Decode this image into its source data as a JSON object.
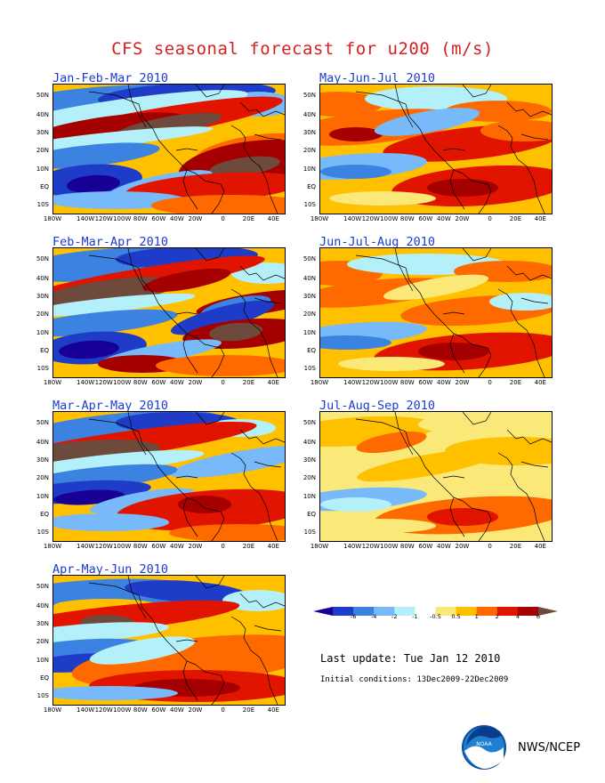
{
  "title": "CFS seasonal forecast for u200 (m/s)",
  "chart_data": [
    {
      "type": "heatmap",
      "title": "Jan-Feb-Mar 2010",
      "variable": "u200 anomaly (m/s)",
      "xticks": [
        "180W",
        "140W",
        "120W",
        "100W",
        "80W",
        "60W",
        "40W",
        "20W",
        "0",
        "20E",
        "40E"
      ],
      "yticks": [
        "50N",
        "40N",
        "30N",
        "20N",
        "10N",
        "EQ",
        "10S"
      ],
      "xlim": [
        -180,
        50
      ],
      "ylim": [
        -15,
        58
      ]
    },
    {
      "type": "heatmap",
      "title": "Feb-Mar-Apr 2010",
      "variable": "u200 anomaly (m/s)",
      "xticks": [
        "180W",
        "140W",
        "120W",
        "100W",
        "80W",
        "60W",
        "40W",
        "20W",
        "0",
        "20E",
        "40E"
      ],
      "yticks": [
        "50N",
        "40N",
        "30N",
        "20N",
        "10N",
        "EQ",
        "10S"
      ],
      "xlim": [
        -180,
        50
      ],
      "ylim": [
        -15,
        58
      ]
    },
    {
      "type": "heatmap",
      "title": "Mar-Apr-May 2010",
      "variable": "u200 anomaly (m/s)",
      "xticks": [
        "180W",
        "140W",
        "120W",
        "100W",
        "80W",
        "60W",
        "40W",
        "20W",
        "0",
        "20E",
        "40E"
      ],
      "yticks": [
        "50N",
        "40N",
        "30N",
        "20N",
        "10N",
        "EQ",
        "10S"
      ],
      "xlim": [
        -180,
        50
      ],
      "ylim": [
        -15,
        58
      ]
    },
    {
      "type": "heatmap",
      "title": "Apr-May-Jun 2010",
      "variable": "u200 anomaly (m/s)",
      "xticks": [
        "180W",
        "140W",
        "120W",
        "100W",
        "80W",
        "60W",
        "40W",
        "20W",
        "0",
        "20E",
        "40E"
      ],
      "yticks": [
        "50N",
        "40N",
        "30N",
        "20N",
        "10N",
        "EQ",
        "10S"
      ],
      "xlim": [
        -180,
        50
      ],
      "ylim": [
        -15,
        58
      ]
    },
    {
      "type": "heatmap",
      "title": "May-Jun-Jul 2010",
      "variable": "u200 anomaly (m/s)",
      "xticks": [
        "180W",
        "140W",
        "120W",
        "100W",
        "80W",
        "60W",
        "40W",
        "20W",
        "0",
        "20E",
        "40E"
      ],
      "yticks": [
        "50N",
        "40N",
        "30N",
        "20N",
        "10N",
        "EQ",
        "10S"
      ],
      "xlim": [
        -180,
        50
      ],
      "ylim": [
        -15,
        58
      ]
    },
    {
      "type": "heatmap",
      "title": "Jun-Jul-Aug 2010",
      "variable": "u200 anomaly (m/s)",
      "xticks": [
        "180W",
        "140W",
        "120W",
        "100W",
        "80W",
        "60W",
        "40W",
        "20W",
        "0",
        "20E",
        "40E"
      ],
      "yticks": [
        "50N",
        "40N",
        "30N",
        "20N",
        "10N",
        "EQ",
        "10S"
      ],
      "xlim": [
        -180,
        50
      ],
      "ylim": [
        -15,
        58
      ]
    },
    {
      "type": "heatmap",
      "title": "Jul-Aug-Sep 2010",
      "variable": "u200 anomaly (m/s)",
      "xticks": [
        "180W",
        "140W",
        "120W",
        "100W",
        "80W",
        "60W",
        "40W",
        "20W",
        "0",
        "20E",
        "40E"
      ],
      "yticks": [
        "50N",
        "40N",
        "30N",
        "20N",
        "10N",
        "EQ",
        "10S"
      ],
      "xlim": [
        -180,
        50
      ],
      "ylim": [
        -15,
        58
      ]
    }
  ],
  "legend": {
    "ticks": [
      "-6",
      "-4",
      "-2",
      "-1",
      "-0.5",
      "0.5",
      "1",
      "2",
      "4",
      "6"
    ],
    "colors": [
      "#160096",
      "#1e3cc8",
      "#3c82e1",
      "#78b9fa",
      "#b4f0fa",
      "#ffffff",
      "#fae878",
      "#ffc000",
      "#ff6a00",
      "#e11400",
      "#a50000",
      "#6e4a3c"
    ]
  },
  "last_update": "Last update: Tue Jan 12 2010",
  "initial_conditions": "Initial conditions: 13Dec2009-22Dec2009",
  "credit": "NWS/NCEP",
  "logo_text": "NOAA"
}
